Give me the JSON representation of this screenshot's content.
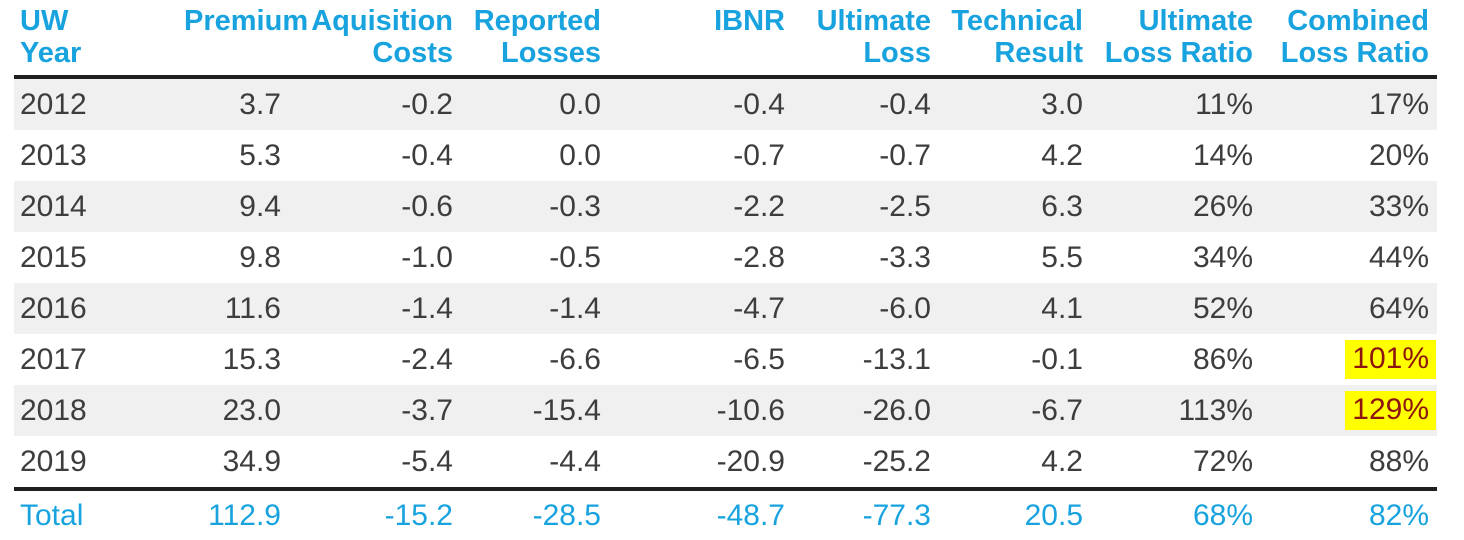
{
  "colors": {
    "accent": "#18a3de",
    "body_text": "#3d3d3d",
    "stripe": "#f0f0f0",
    "rule": "#1f1f1f",
    "highlight_bg": "#ffff00",
    "highlight_text": "#8e1410"
  },
  "table": {
    "columns": [
      {
        "key": "uw_year",
        "label": "UW\nYear"
      },
      {
        "key": "premium",
        "label": "Premium"
      },
      {
        "key": "acquisition_costs",
        "label": "Aquisition\nCosts"
      },
      {
        "key": "reported_losses",
        "label": "Reported\nLosses"
      },
      {
        "key": "ibnr",
        "label": "IBNR"
      },
      {
        "key": "ultimate_loss",
        "label": "Ultimate\nLoss"
      },
      {
        "key": "technical_result",
        "label": "Technical\nResult"
      },
      {
        "key": "ultimate_loss_ratio",
        "label": "Ultimate\nLoss Ratio"
      },
      {
        "key": "combined_loss_ratio",
        "label": "Combined\nLoss Ratio"
      }
    ],
    "rows": [
      {
        "values": [
          "2012",
          "3.7",
          "-0.2",
          "0.0",
          "-0.4",
          "-0.4",
          "3.0",
          "11%",
          "17%"
        ],
        "highlight": []
      },
      {
        "values": [
          "2013",
          "5.3",
          "-0.4",
          "0.0",
          "-0.7",
          "-0.7",
          "4.2",
          "14%",
          "20%"
        ],
        "highlight": []
      },
      {
        "values": [
          "2014",
          "9.4",
          "-0.6",
          "-0.3",
          "-2.2",
          "-2.5",
          "6.3",
          "26%",
          "33%"
        ],
        "highlight": []
      },
      {
        "values": [
          "2015",
          "9.8",
          "-1.0",
          "-0.5",
          "-2.8",
          "-3.3",
          "5.5",
          "34%",
          "44%"
        ],
        "highlight": []
      },
      {
        "values": [
          "2016",
          "11.6",
          "-1.4",
          "-1.4",
          "-4.7",
          "-6.0",
          "4.1",
          "52%",
          "64%"
        ],
        "highlight": []
      },
      {
        "values": [
          "2017",
          "15.3",
          "-2.4",
          "-6.6",
          "-6.5",
          "-13.1",
          "-0.1",
          "86%",
          "101%"
        ],
        "highlight": [
          "combined_loss_ratio"
        ]
      },
      {
        "values": [
          "2018",
          "23.0",
          "-3.7",
          "-15.4",
          "-10.6",
          "-26.0",
          "-6.7",
          "113%",
          "129%"
        ],
        "highlight": [
          "combined_loss_ratio"
        ]
      },
      {
        "values": [
          "2019",
          "34.9",
          "-5.4",
          "-4.4",
          "-20.9",
          "-25.2",
          "4.2",
          "72%",
          "88%"
        ],
        "highlight": []
      }
    ],
    "total": {
      "values": [
        "Total",
        "112.9",
        "-15.2",
        "-28.5",
        "-48.7",
        "-77.3",
        "20.5",
        "68%",
        "82%"
      ],
      "highlight": []
    }
  },
  "chart_data": {
    "type": "table",
    "title": "Underwriting year result table",
    "columns": [
      "UW Year",
      "Premium",
      "Aquisition Costs",
      "Reported Losses",
      "IBNR",
      "Ultimate Loss",
      "Technical Result",
      "Ultimate Loss Ratio",
      "Combined Loss Ratio"
    ],
    "rows": [
      [
        "2012",
        3.7,
        -0.2,
        0.0,
        -0.4,
        -0.4,
        3.0,
        "11%",
        "17%"
      ],
      [
        "2013",
        5.3,
        -0.4,
        0.0,
        -0.7,
        -0.7,
        4.2,
        "14%",
        "20%"
      ],
      [
        "2014",
        9.4,
        -0.6,
        -0.3,
        -2.2,
        -2.5,
        6.3,
        "26%",
        "33%"
      ],
      [
        "2015",
        9.8,
        -1.0,
        -0.5,
        -2.8,
        -3.3,
        5.5,
        "34%",
        "44%"
      ],
      [
        "2016",
        11.6,
        -1.4,
        -1.4,
        -4.7,
        -6.0,
        4.1,
        "52%",
        "64%"
      ],
      [
        "2017",
        15.3,
        -2.4,
        -6.6,
        -6.5,
        -13.1,
        -0.1,
        "86%",
        "101%"
      ],
      [
        "2018",
        23.0,
        -3.7,
        -15.4,
        -10.6,
        -26.0,
        -6.7,
        "113%",
        "129%"
      ],
      [
        "2019",
        34.9,
        -5.4,
        -4.4,
        -20.9,
        -25.2,
        4.2,
        "72%",
        "88%"
      ]
    ],
    "total_row": [
      "Total",
      112.9,
      -15.2,
      -28.5,
      -48.7,
      -77.3,
      20.5,
      "68%",
      "82%"
    ],
    "annotations": [
      "Combined Loss Ratio 101% (2017) highlighted yellow with dark red text",
      "Combined Loss Ratio 129% (2018) highlighted yellow with dark red text"
    ]
  }
}
